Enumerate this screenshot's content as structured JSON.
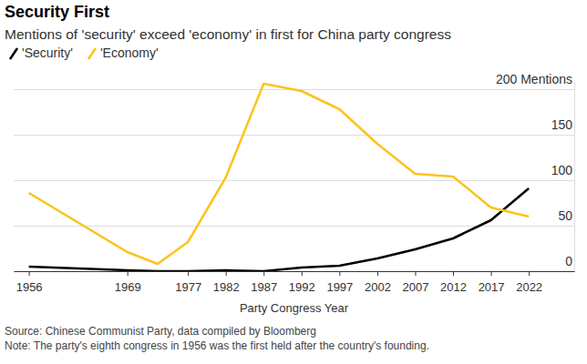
{
  "chart_data": {
    "type": "line",
    "title": "Security First",
    "subtitle": "Mentions of 'security' exceed 'economy' in first for China party congress",
    "x_label": "Party Congress Year",
    "source": "Source: Chinese Communist Party, data compiled by Bloomberg",
    "note": "Note: The party's eighth congress in 1956 was the first held after the country's founding.",
    "x": [
      1956,
      1969,
      1973,
      1977,
      1982,
      1987,
      1992,
      1997,
      2002,
      2007,
      2012,
      2017,
      2022
    ],
    "series": [
      {
        "name": "'Security'",
        "color": "#000000",
        "values": [
          5,
          1,
          0,
          0,
          1,
          0,
          4,
          6,
          14,
          24,
          36,
          56,
          91
        ]
      },
      {
        "name": "'Economy'",
        "color": "#fcc31e",
        "values": [
          86,
          21,
          8,
          32,
          103,
          206,
          198,
          178,
          140,
          107,
          104,
          70,
          60
        ]
      }
    ],
    "xlim": [
      1954,
      2028
    ],
    "xticks": [
      1956,
      1969,
      1977,
      1982,
      1987,
      1992,
      1997,
      2002,
      2007,
      2012,
      2017,
      2022
    ],
    "ylim": [
      0,
      210
    ],
    "yticks": [
      0,
      50,
      100,
      150,
      {
        "value": 200,
        "label": "200 Mentions"
      }
    ],
    "grid": true,
    "legend": "top-left"
  }
}
